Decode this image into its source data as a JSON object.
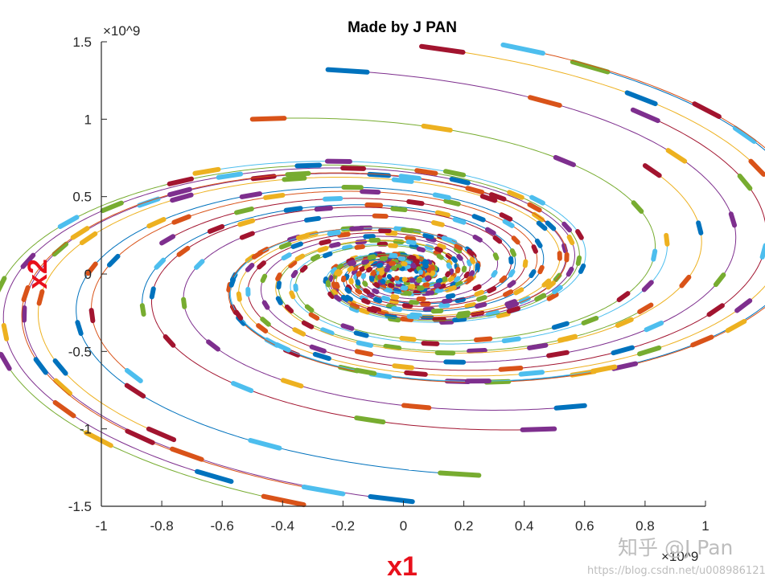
{
  "chart_data": {
    "type": "line",
    "title": "Made by J PAN",
    "xlabel": "x1",
    "ylabel": "x2",
    "x_multiplier": "×10^9",
    "y_multiplier": "×10^9",
    "xlim": [
      -1,
      1
    ],
    "ylim": [
      -1.5,
      1.5
    ],
    "x_ticks": [
      "-1",
      "-0.8",
      "-0.6",
      "-0.4",
      "-0.2",
      "0",
      "0.2",
      "0.4",
      "0.6",
      "0.8",
      "1"
    ],
    "y_ticks": [
      "1.5",
      "1",
      "0.5",
      "0",
      "-0.5",
      "-1",
      "-1.5"
    ],
    "grid": false,
    "description_of_series": "Phase-portrait trajectories spiralling clockwise into the origin; each trajectory drawn as a thin line with bold arrow segments.",
    "trajectory_starts": [
      [
        0.03,
        -1.47
      ],
      [
        0.82,
        -0.2
      ],
      [
        0.87,
        0.25
      ],
      [
        0.76,
        1.06
      ],
      [
        0.56,
        1.37
      ],
      [
        0.33,
        1.48
      ],
      [
        0.06,
        1.47
      ],
      [
        -0.25,
        1.32
      ],
      [
        -0.5,
        1.0
      ],
      [
        -0.69,
        0.65
      ],
      [
        -0.8,
        0.2
      ],
      [
        -0.86,
        -0.26
      ],
      [
        -0.87,
        -0.69
      ],
      [
        -0.76,
        -1.07
      ],
      [
        -0.57,
        -1.34
      ],
      [
        -0.33,
        -1.49
      ],
      [
        0.7,
        -0.6
      ],
      [
        0.5,
        -1.0
      ],
      [
        0.25,
        -1.3
      ],
      [
        -0.2,
        -1.42
      ],
      [
        0.8,
        0.7
      ],
      [
        0.6,
        -0.85
      ]
    ],
    "series_colors": [
      "#0072bd",
      "#d95319",
      "#edb120",
      "#7e2f8e",
      "#77ac30",
      "#4dbeee",
      "#a2142f"
    ]
  },
  "watermark": {
    "brand": "知乎 @J Pan",
    "url": "https://blog.csdn.net/u008986121"
  }
}
